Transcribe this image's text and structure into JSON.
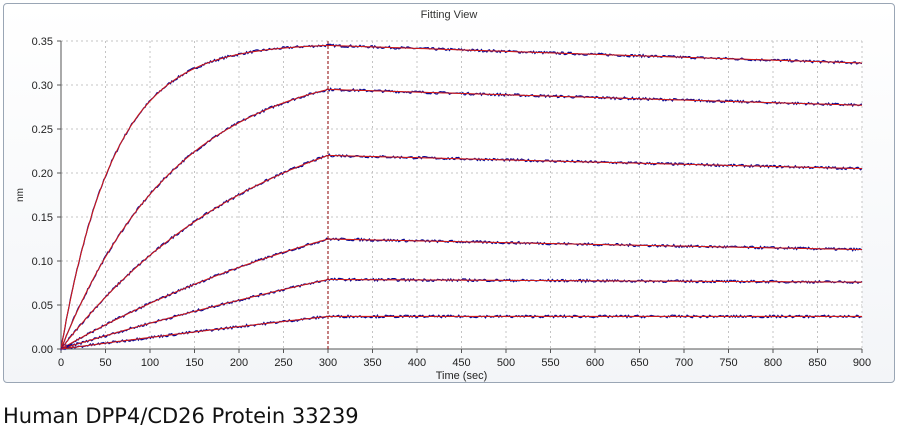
{
  "window": {
    "title": "Fitting View"
  },
  "caption": "Human DPP4/CD26 Protein 33239",
  "colors": {
    "measured": "#0a0a96",
    "fit": "#cc1a1a",
    "grid": "#c4c4c4",
    "marker": "#8b0000"
  },
  "chart_data": {
    "type": "line",
    "title": "Fitting View",
    "xlabel": "Time (sec)",
    "ylabel": "nm",
    "xlim": [
      0,
      900
    ],
    "ylim": [
      0,
      0.35
    ],
    "xticks": [
      0,
      50,
      100,
      150,
      200,
      250,
      300,
      350,
      400,
      450,
      500,
      550,
      600,
      650,
      700,
      750,
      800,
      850,
      900
    ],
    "yticks": [
      0.0,
      0.05,
      0.1,
      0.15,
      0.2,
      0.25,
      0.3,
      0.35
    ],
    "ytick_labels": [
      "0.00",
      "0.05",
      "0.10",
      "0.15",
      "0.20",
      "0.25",
      "0.30",
      "0.35"
    ],
    "grid": true,
    "association_end": 300,
    "phase_marker_x": 300,
    "series": [
      {
        "name": "curve-1",
        "peak": 0.345,
        "end": 0.325,
        "tau": 60
      },
      {
        "name": "curve-2",
        "peak": 0.295,
        "end": 0.277,
        "tau": 130
      },
      {
        "name": "curve-3",
        "peak": 0.22,
        "end": 0.205,
        "tau": 230
      },
      {
        "name": "curve-4",
        "peak": 0.125,
        "end": 0.113,
        "tau": 420
      },
      {
        "name": "curve-5",
        "peak": 0.079,
        "end": 0.076,
        "tau": 900
      },
      {
        "name": "curve-6",
        "peak": 0.037,
        "end": 0.037,
        "tau": 1600
      }
    ]
  }
}
